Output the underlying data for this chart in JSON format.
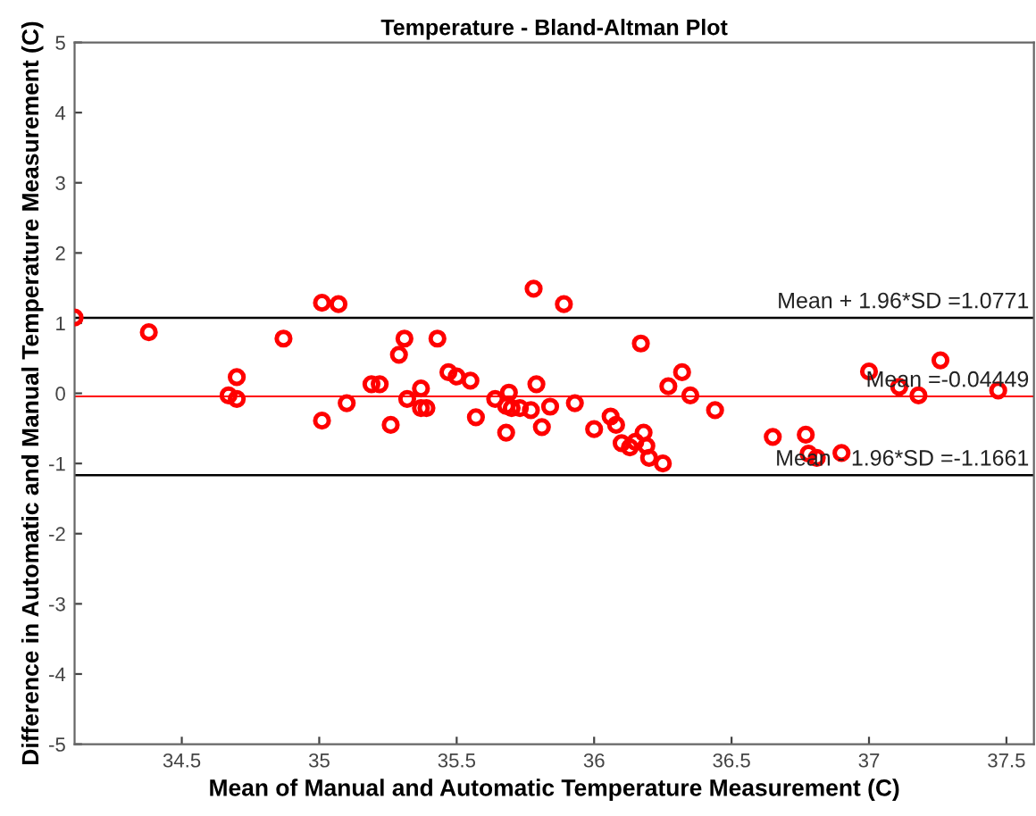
{
  "chart_data": {
    "type": "scatter",
    "title": "Temperature - Bland-Altman Plot",
    "xlabel": "Mean of Manual and Automatic Temperature Measurement (C)",
    "ylabel": "Difference in Automatic and Manual Temperature Measurement (C)",
    "x": [
      34.11,
      34.38,
      34.67,
      34.7,
      34.7,
      34.87,
      35.01,
      35.07,
      35.01,
      35.1,
      35.19,
      35.22,
      35.26,
      35.29,
      35.31,
      35.32,
      35.37,
      35.37,
      35.39,
      35.43,
      35.47,
      35.5,
      35.55,
      35.57,
      35.64,
      35.68,
      35.69,
      35.68,
      35.7,
      35.73,
      35.77,
      35.78,
      35.79,
      35.81,
      35.84,
      35.89,
      35.93,
      36.0,
      36.06,
      36.08,
      36.1,
      36.13,
      36.15,
      36.18,
      36.19,
      36.2,
      36.25,
      36.17,
      36.27,
      36.32,
      36.35,
      36.44,
      36.65,
      36.77,
      36.78,
      36.81,
      36.9,
      37.0,
      37.11,
      37.18,
      37.26,
      37.47
    ],
    "series": [
      {
        "color": "#ff0000",
        "values": [
          1.08,
          0.87,
          -0.03,
          0.23,
          -0.08,
          0.78,
          1.29,
          1.27,
          -0.39,
          -0.14,
          0.13,
          0.13,
          -0.45,
          0.55,
          0.78,
          -0.08,
          0.07,
          -0.21,
          -0.21,
          0.78,
          0.3,
          0.24,
          0.18,
          -0.34,
          -0.08,
          -0.56,
          0.01,
          -0.18,
          -0.21,
          -0.21,
          -0.24,
          1.49,
          0.13,
          -0.48,
          -0.19,
          1.27,
          -0.14,
          -0.51,
          -0.33,
          -0.45,
          -0.71,
          -0.77,
          -0.69,
          -0.56,
          -0.75,
          -0.92,
          -1.0,
          0.71,
          0.1,
          0.3,
          -0.03,
          -0.24,
          -0.62,
          -0.59,
          -0.86,
          -0.92,
          -0.85,
          0.31,
          0.09,
          -0.03,
          0.47,
          0.04
        ]
      }
    ],
    "marker": "circle",
    "xlim": [
      34.11,
      37.6
    ],
    "xticks": [
      34.5,
      35,
      35.5,
      36,
      36.5,
      37,
      37.5
    ],
    "ylim": [
      -5,
      5
    ],
    "yticks": [
      -5,
      -4,
      -3,
      -2,
      -1,
      0,
      1,
      2,
      3,
      4,
      5
    ],
    "ref_lines": [
      {
        "axis": "y",
        "value": 1.0771,
        "label": "Mean + 1.96*SD =1.0771",
        "color": "#000000"
      },
      {
        "axis": "y",
        "value": -0.04449,
        "label": "Mean =-0.04449",
        "color": "#ff0000"
      },
      {
        "axis": "y",
        "value": -1.1661,
        "label": "Mean - 1.96*SD =-1.1661",
        "color": "#000000"
      }
    ],
    "grid": false
  }
}
